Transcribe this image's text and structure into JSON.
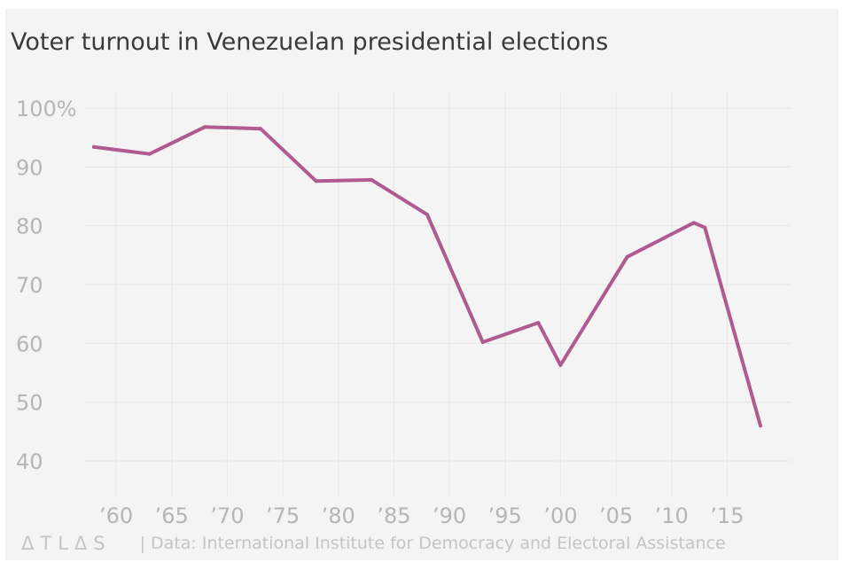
{
  "title": "Voter turnout in Venezuelan presidential elections",
  "footer": {
    "brand": "ΔTLΔS",
    "source": "| Data: International Institute for Democracy and Electoral Assistance"
  },
  "colors": {
    "line": "#b05a92",
    "background": "#f4f4f4",
    "grid": "#e6e6e6",
    "tick_text": "#b5b5b5",
    "title_text": "#3a3a3a"
  },
  "chart_data": {
    "type": "line",
    "title": "Voter turnout in Venezuelan presidential elections",
    "xlabel": "",
    "ylabel": "",
    "xlim": [
      1958,
      2018
    ],
    "ylim": [
      40,
      100
    ],
    "grid": true,
    "x_ticks": [
      1960,
      1965,
      1970,
      1975,
      1980,
      1985,
      1990,
      1995,
      2000,
      2005,
      2010,
      2015
    ],
    "x_tick_labels": [
      "’60",
      "’65",
      "’70",
      "’75",
      "’80",
      "’85",
      "’90",
      "’95",
      "’00",
      "’05",
      "’10",
      "’15"
    ],
    "y_ticks": [
      40,
      50,
      60,
      70,
      80,
      90,
      100
    ],
    "y_tick_labels": [
      "40",
      "50",
      "60",
      "70",
      "80",
      "90",
      "100%"
    ],
    "series": [
      {
        "x": [
          1958,
          1963,
          1968,
          1973,
          1978,
          1983,
          1988,
          1993,
          1998,
          2000,
          2006,
          2012,
          2013,
          2018
        ],
        "y": [
          93.4,
          92.2,
          96.8,
          96.5,
          87.6,
          87.8,
          81.9,
          60.2,
          63.5,
          56.3,
          74.7,
          80.5,
          79.7,
          46.0
        ]
      }
    ]
  }
}
